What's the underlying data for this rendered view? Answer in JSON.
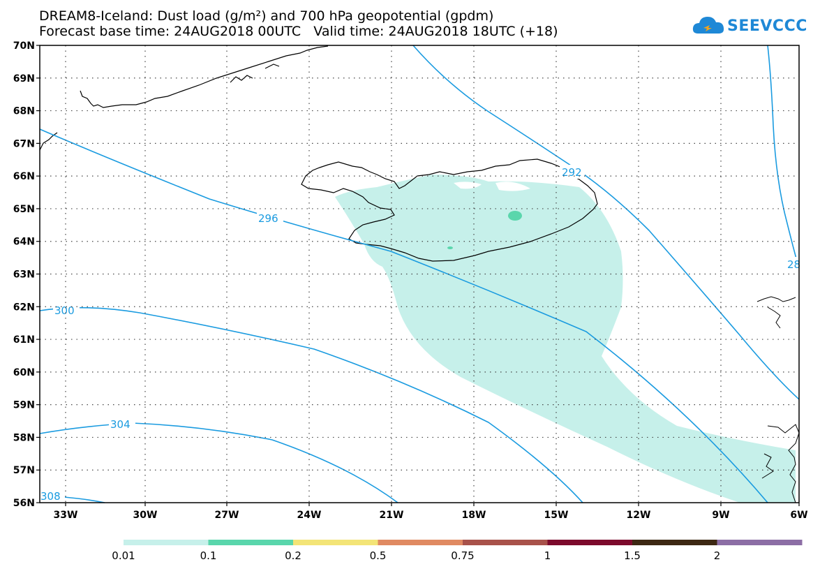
{
  "header": {
    "title_line1": "DREAM8-Iceland: Dust load (g/m²) and 700 hPa geopotential (gpdm)",
    "title_line2": "Forecast base time: 24AUG2018 00UTC   Valid time: 24AUG2018 18UTC (+18)"
  },
  "logo": {
    "text": "SEEVCCC",
    "color": "#1e88d6"
  },
  "map": {
    "lon_labels": [
      "33W",
      "30W",
      "27W",
      "24W",
      "21W",
      "18W",
      "15W",
      "12W",
      "9W",
      "6W"
    ],
    "lat_labels": [
      "70N",
      "69N",
      "68N",
      "67N",
      "66N",
      "65N",
      "64N",
      "63N",
      "62N",
      "61N",
      "60N",
      "59N",
      "58N",
      "57N",
      "56N"
    ],
    "contour_labels": [
      "292",
      "296",
      "300",
      "304",
      "308",
      "28"
    ],
    "contour_color": "#1a9be0",
    "coast_color": "#000000"
  },
  "legend": {
    "labels": [
      "0.01",
      "0.1",
      "0.2",
      "0.5",
      "0.75",
      "1",
      "1.5",
      "2"
    ],
    "colors": [
      "#c6f0ea",
      "#5ad6ac",
      "#f3e477",
      "#e08a62",
      "#a8524a",
      "#7c0a2c",
      "#3d2813",
      "#8c6ea5"
    ]
  }
}
